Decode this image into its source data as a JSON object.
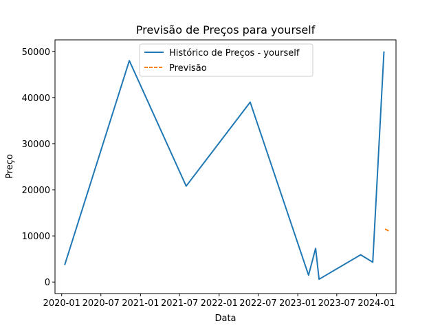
{
  "chart_data": {
    "type": "line",
    "title": "Previsão de Preços para yourself",
    "xlabel": "Data",
    "ylabel": "Preço",
    "xlim": [
      "2019-12-01",
      "2024-04-01"
    ],
    "ylim": [
      -2500,
      52500
    ],
    "x_ticks": [
      "2020-01",
      "2020-07",
      "2021-01",
      "2021-07",
      "2022-01",
      "2022-07",
      "2023-01",
      "2023-07",
      "2024-01"
    ],
    "y_ticks": [
      0,
      10000,
      20000,
      30000,
      40000,
      50000
    ],
    "grid": false,
    "legend_position": "top-center",
    "series": [
      {
        "name": "Histórico de Preços - yourself",
        "color": "#1f77b4",
        "style": "solid",
        "points": [
          {
            "x": "2020-01-15",
            "y": 3700
          },
          {
            "x": "2020-11-10",
            "y": 48000
          },
          {
            "x": "2021-08-01",
            "y": 20800
          },
          {
            "x": "2022-05-25",
            "y": 39000
          },
          {
            "x": "2023-02-20",
            "y": 1500
          },
          {
            "x": "2023-03-25",
            "y": 7300
          },
          {
            "x": "2023-04-10",
            "y": 600
          },
          {
            "x": "2023-10-20",
            "y": 5900
          },
          {
            "x": "2023-12-15",
            "y": 4300
          },
          {
            "x": "2024-02-05",
            "y": 50000
          }
        ]
      },
      {
        "name": "Previsão",
        "color": "#ff7f0e",
        "style": "dashed",
        "points": [
          {
            "x": "2024-02-10",
            "y": 11500
          },
          {
            "x": "2024-03-01",
            "y": 11000
          }
        ]
      }
    ]
  }
}
